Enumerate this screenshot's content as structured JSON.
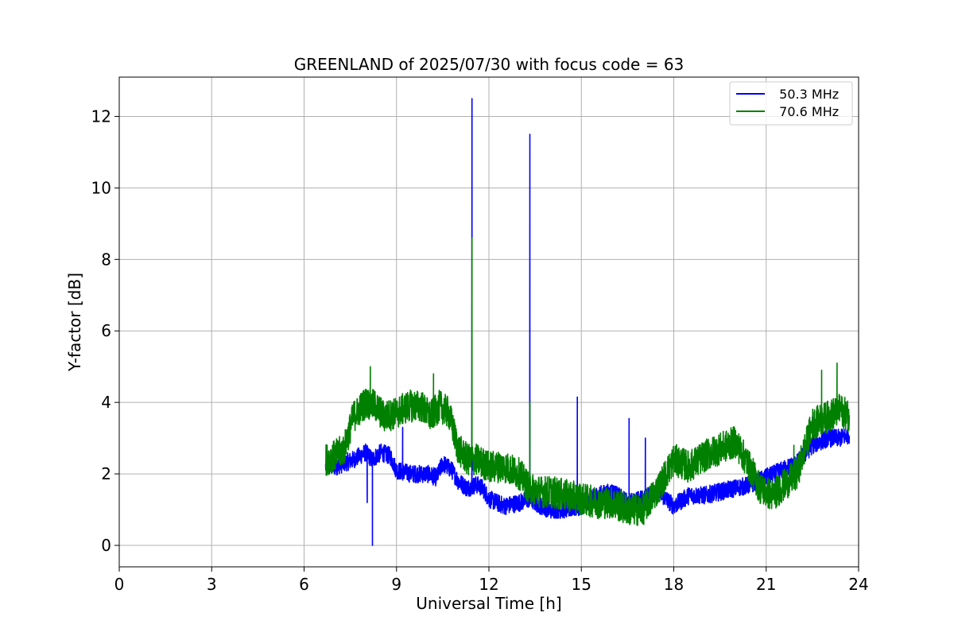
{
  "chart_data": {
    "type": "line",
    "title": "GREENLAND of 2025/07/30 with focus code = 63",
    "xlabel": "Universal Time [h]",
    "ylabel": "Y-factor [dB]",
    "xlim": [
      0,
      24
    ],
    "ylim": [
      -0.6,
      13.1
    ],
    "xticks": [
      0,
      3,
      6,
      9,
      12,
      15,
      18,
      21,
      24
    ],
    "yticks": [
      0,
      2,
      4,
      6,
      8,
      10,
      12
    ],
    "grid": true,
    "legend_position": "top-right",
    "series": [
      {
        "name": "  50.3 MHz",
        "color": "#0000ff",
        "noise": 0.25,
        "points": [
          [
            6.7,
            2.2
          ],
          [
            7.0,
            2.2
          ],
          [
            7.3,
            2.3
          ],
          [
            7.6,
            2.4
          ],
          [
            7.8,
            2.5
          ],
          [
            8.0,
            2.6
          ],
          [
            8.2,
            2.4
          ],
          [
            8.5,
            2.6
          ],
          [
            8.8,
            2.5
          ],
          [
            9.0,
            2.1
          ],
          [
            9.5,
            2.0
          ],
          [
            10.0,
            2.0
          ],
          [
            10.3,
            1.9
          ],
          [
            10.5,
            2.3
          ],
          [
            10.8,
            2.1
          ],
          [
            11.0,
            1.8
          ],
          [
            11.3,
            1.6
          ],
          [
            11.6,
            1.7
          ],
          [
            11.8,
            1.6
          ],
          [
            12.0,
            1.3
          ],
          [
            12.5,
            1.1
          ],
          [
            13.0,
            1.2
          ],
          [
            13.3,
            1.3
          ],
          [
            13.7,
            1.1
          ],
          [
            14.0,
            1.0
          ],
          [
            14.5,
            1.0
          ],
          [
            15.0,
            1.1
          ],
          [
            15.5,
            1.4
          ],
          [
            16.0,
            1.5
          ],
          [
            16.5,
            1.2
          ],
          [
            17.0,
            1.3
          ],
          [
            17.5,
            1.5
          ],
          [
            18.0,
            1.1
          ],
          [
            18.5,
            1.4
          ],
          [
            19.0,
            1.4
          ],
          [
            19.5,
            1.5
          ],
          [
            20.0,
            1.6
          ],
          [
            20.5,
            1.7
          ],
          [
            21.0,
            1.9
          ],
          [
            21.5,
            2.1
          ],
          [
            22.0,
            2.3
          ],
          [
            22.5,
            2.8
          ],
          [
            23.0,
            3.0
          ],
          [
            23.4,
            3.0
          ],
          [
            23.7,
            3.1
          ]
        ],
        "spikes": [
          [
            8.22,
            0.0
          ],
          [
            8.05,
            1.2
          ],
          [
            9.2,
            3.3
          ],
          [
            11.45,
            12.5
          ],
          [
            13.33,
            11.5
          ],
          [
            14.87,
            4.15
          ],
          [
            16.55,
            3.55
          ],
          [
            17.08,
            3.0
          ],
          [
            22.5,
            3.6
          ]
        ]
      },
      {
        "name": "  70.6 MHz",
        "color": "#008000",
        "noise": 0.45,
        "points": [
          [
            6.7,
            2.4
          ],
          [
            7.0,
            2.5
          ],
          [
            7.3,
            2.7
          ],
          [
            7.6,
            3.6
          ],
          [
            7.8,
            3.8
          ],
          [
            8.0,
            4.0
          ],
          [
            8.3,
            3.9
          ],
          [
            8.6,
            3.6
          ],
          [
            9.0,
            3.7
          ],
          [
            9.4,
            3.9
          ],
          [
            9.8,
            3.9
          ],
          [
            10.1,
            3.6
          ],
          [
            10.4,
            3.9
          ],
          [
            10.7,
            3.7
          ],
          [
            11.0,
            2.7
          ],
          [
            11.3,
            2.4
          ],
          [
            11.6,
            2.4
          ],
          [
            12.0,
            2.2
          ],
          [
            12.5,
            2.2
          ],
          [
            13.0,
            2.0
          ],
          [
            13.3,
            1.6
          ],
          [
            13.7,
            1.5
          ],
          [
            14.0,
            1.5
          ],
          [
            14.5,
            1.4
          ],
          [
            15.0,
            1.3
          ],
          [
            15.5,
            1.2
          ],
          [
            16.0,
            1.2
          ],
          [
            16.5,
            1.0
          ],
          [
            17.0,
            1.0
          ],
          [
            17.5,
            1.6
          ],
          [
            18.0,
            2.4
          ],
          [
            18.5,
            2.2
          ],
          [
            19.0,
            2.5
          ],
          [
            19.5,
            2.7
          ],
          [
            20.0,
            2.9
          ],
          [
            20.4,
            2.3
          ],
          [
            20.8,
            1.6
          ],
          [
            21.2,
            1.4
          ],
          [
            21.6,
            1.7
          ],
          [
            22.0,
            2.0
          ],
          [
            22.5,
            3.4
          ],
          [
            23.0,
            3.6
          ],
          [
            23.4,
            3.8
          ],
          [
            23.7,
            3.6
          ]
        ],
        "spikes": [
          [
            11.45,
            8.6
          ],
          [
            13.33,
            4.0
          ],
          [
            23.3,
            5.1
          ],
          [
            22.8,
            4.9
          ],
          [
            8.15,
            5.0
          ],
          [
            10.2,
            4.8
          ],
          [
            21.9,
            2.8
          ]
        ]
      }
    ]
  }
}
